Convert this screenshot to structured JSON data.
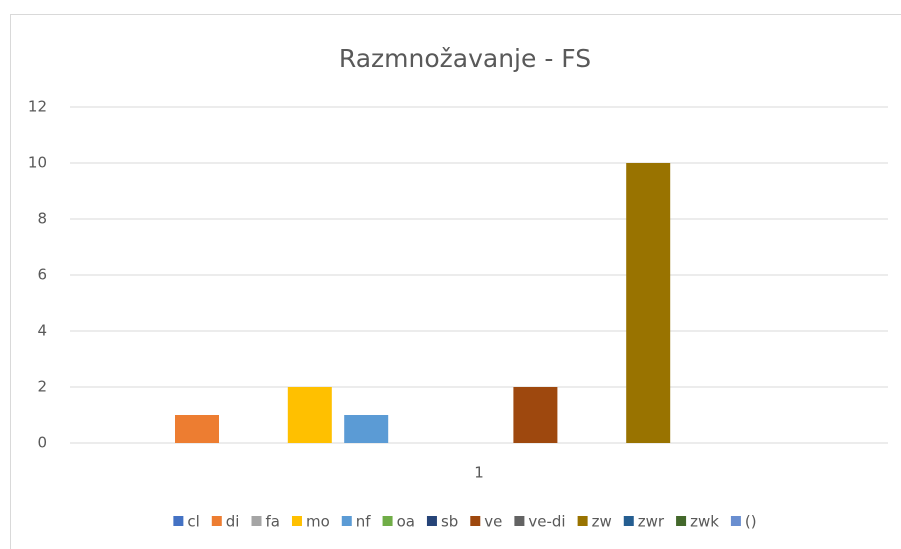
{
  "chart_data": {
    "type": "bar",
    "title": "Razmnožavanje - FS",
    "categories": [
      "1"
    ],
    "series": [
      {
        "name": "cl",
        "color": "#4472c4",
        "values": [
          0
        ]
      },
      {
        "name": "di",
        "color": "#ed7d31",
        "values": [
          1
        ]
      },
      {
        "name": "fa",
        "color": "#a5a5a5",
        "values": [
          0
        ]
      },
      {
        "name": "mo",
        "color": "#ffc000",
        "values": [
          2
        ]
      },
      {
        "name": "nf",
        "color": "#5b9bd5",
        "values": [
          1
        ]
      },
      {
        "name": "oa",
        "color": "#70ad47",
        "values": [
          0
        ]
      },
      {
        "name": "sb",
        "color": "#264478",
        "values": [
          0
        ]
      },
      {
        "name": "ve",
        "color": "#9e480e",
        "values": [
          2
        ]
      },
      {
        "name": "ve-di",
        "color": "#636363",
        "values": [
          0
        ]
      },
      {
        "name": "zw",
        "color": "#997300",
        "values": [
          10
        ]
      },
      {
        "name": "zwr",
        "color": "#255e91",
        "values": [
          0
        ]
      },
      {
        "name": "zwk",
        "color": "#43682b",
        "values": [
          0
        ]
      },
      {
        "name": "()",
        "color": "#698ed0",
        "values": [
          0
        ]
      }
    ],
    "ylim": [
      0,
      12
    ],
    "yticks": [
      0,
      2,
      4,
      6,
      8,
      10,
      12
    ],
    "grid": true,
    "legend": "bottom"
  }
}
